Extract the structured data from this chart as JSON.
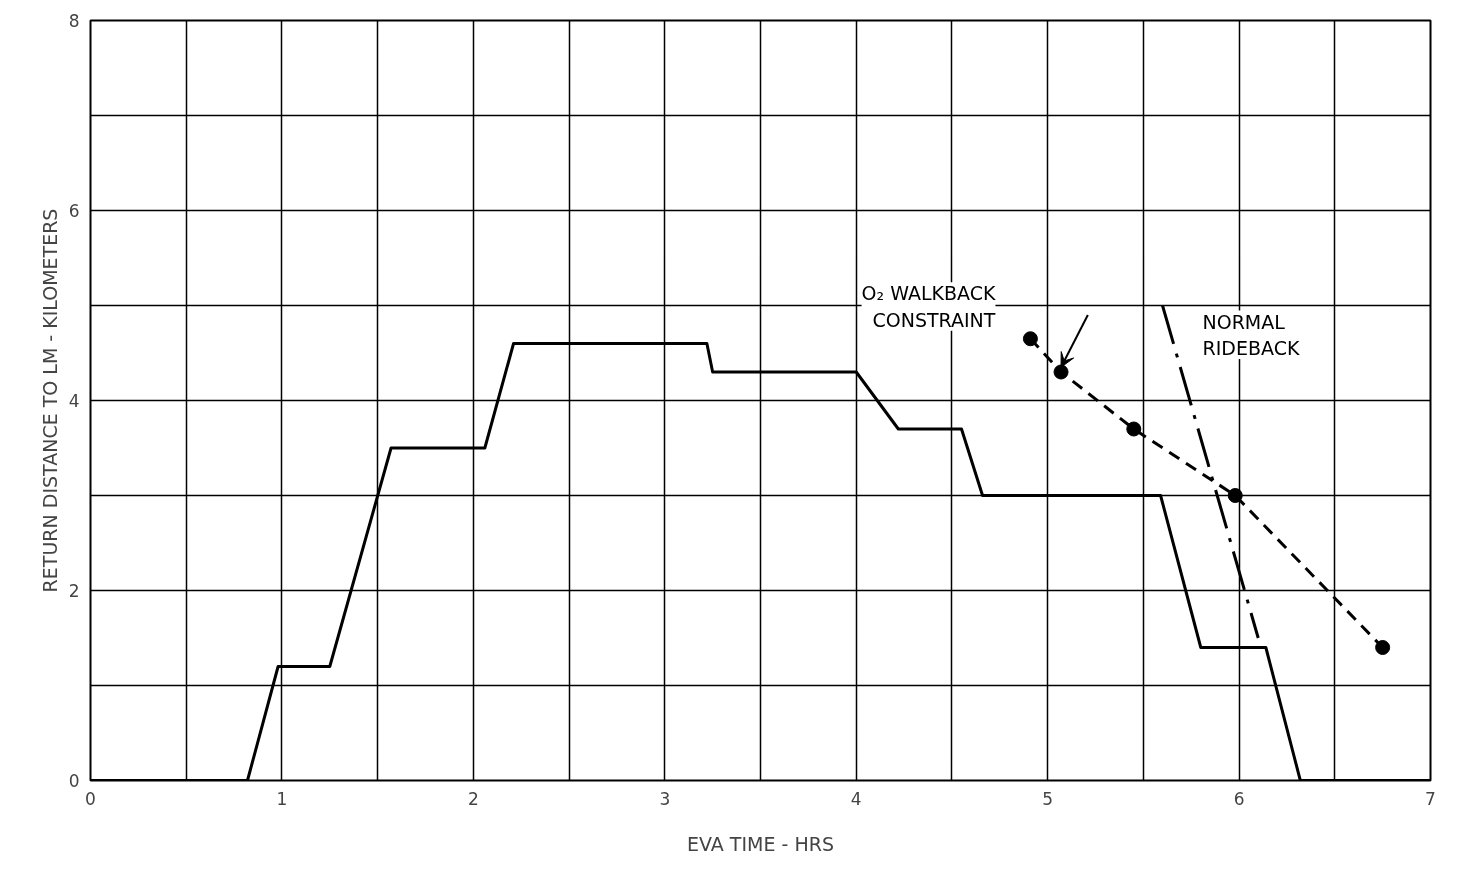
{
  "chart_data": {
    "type": "line",
    "xlabel": "EVA TIME - HRS",
    "ylabel": "RETURN DISTANCE TO LM - KILOMETERS",
    "xlim": [
      0,
      7
    ],
    "ylim": [
      0,
      8
    ],
    "xticks": [
      0,
      {
        "value": 0.5,
        "label": null
      },
      1,
      {
        "value": 1.5,
        "label": null
      },
      2,
      {
        "value": 2.5,
        "label": null
      },
      3,
      {
        "value": 3.5,
        "label": null
      },
      4,
      {
        "value": 4.5,
        "label": null
      },
      5,
      {
        "value": 5.5,
        "label": null
      },
      6,
      {
        "value": 6.5,
        "label": null
      },
      7
    ],
    "yticks": [
      0,
      {
        "value": 1,
        "label": null
      },
      2,
      {
        "value": 3,
        "label": null
      },
      4,
      {
        "value": 5,
        "label": null
      },
      6,
      {
        "value": 7,
        "label": null
      },
      8
    ],
    "grid": true,
    "series": [
      {
        "color": "#000000",
        "marker": "none",
        "line_style": "solid",
        "x": [
          0,
          0.82,
          0.98,
          1.25,
          1.57,
          2.06,
          2.21,
          3.22,
          3.25,
          4.0,
          4.22,
          4.55,
          4.66,
          5.59,
          5.8,
          6.14,
          6.32,
          7
        ],
        "values": [
          0,
          0,
          1.2,
          1.2,
          3.5,
          3.5,
          4.6,
          4.6,
          4.3,
          4.3,
          3.7,
          3.7,
          3.0,
          3.0,
          1.4,
          1.4,
          0,
          0
        ]
      },
      {
        "name": "O₂ WALKBACK\nCONSTRAINT",
        "color": "#000000",
        "marker": "circle",
        "line_style": "dashed",
        "x": [
          4.91,
          5.07,
          5.45,
          5.98,
          6.75
        ],
        "values": [
          4.65,
          4.3,
          3.7,
          3.0,
          1.4
        ]
      },
      {
        "name": "NORMAL\nRIDEBACK",
        "color": "#000000",
        "marker": "none",
        "line_style": "dashdot",
        "x": [
          5.6,
          6.1
        ],
        "values": [
          5.0,
          1.5
        ]
      }
    ]
  }
}
